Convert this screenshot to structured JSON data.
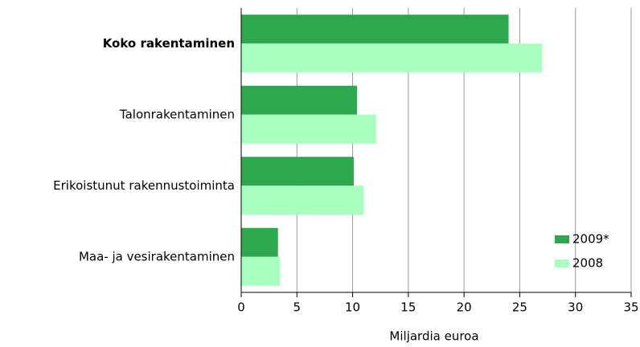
{
  "chart_data": {
    "type": "barh",
    "categories": [
      "Koko rakentaminen",
      "Talonrakentaminen",
      "Erikoistunut rakennustoiminta",
      "Maa- ja vesirakentaminen"
    ],
    "series": [
      {
        "name": "2009*",
        "color": "#2ea84f",
        "values": [
          24,
          10.4,
          10.1,
          3.3
        ]
      },
      {
        "name": "2008",
        "color": "#a8ffc0",
        "values": [
          27,
          12.1,
          11.0,
          3.5
        ]
      }
    ],
    "xlabel": "Miljardia euroa",
    "xlim": [
      0,
      35
    ],
    "xticks": [
      0,
      5,
      10,
      15,
      20,
      25,
      30,
      35
    ],
    "grid": true,
    "legend": "lower right"
  }
}
